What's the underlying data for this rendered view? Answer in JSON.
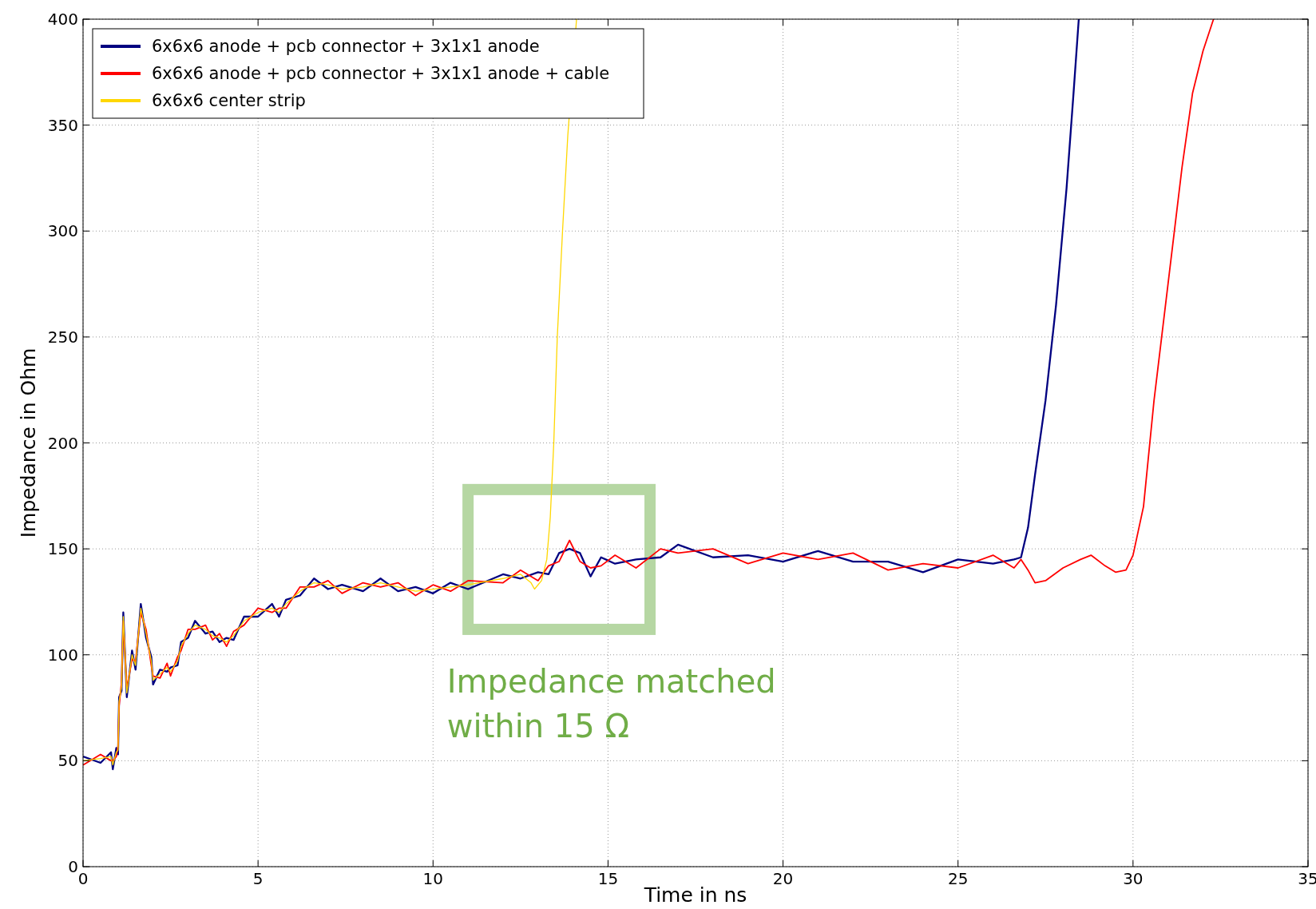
{
  "chart_data": {
    "type": "line",
    "xlabel": "Time in ns",
    "ylabel": "Impedance in Ohm",
    "xlim": [
      0,
      35
    ],
    "ylim": [
      0,
      400
    ],
    "xticks": [
      0,
      5,
      10,
      15,
      20,
      25,
      30,
      35
    ],
    "yticks": [
      0,
      50,
      100,
      150,
      200,
      250,
      300,
      350,
      400
    ],
    "grid": true,
    "legend": "top left",
    "line_style": "solid",
    "marker": "none",
    "annotations": [
      "Impedance matched within 15 Ω"
    ],
    "series": [
      {
        "name": "6x6x6 anode + pcb connector + 3x1x1 anode",
        "color": "#000080",
        "x": [
          0,
          0.5,
          0.8,
          0.85,
          0.95,
          1.0,
          1.03,
          1.1,
          1.15,
          1.25,
          1.4,
          1.5,
          1.65,
          1.8,
          1.95,
          2.0,
          2.2,
          2.4,
          2.5,
          2.7,
          2.8,
          3.0,
          3.2,
          3.5,
          3.7,
          3.9,
          4.1,
          4.3,
          4.6,
          5.0,
          5.4,
          5.6,
          5.8,
          6.2,
          6.6,
          7.0,
          7.4,
          8.0,
          8.5,
          9.0,
          9.5,
          10.0,
          10.5,
          11.0,
          12.0,
          12.5,
          13.0,
          13.3,
          13.6,
          13.9,
          14.2,
          14.5,
          14.8,
          15.2,
          15.8,
          16.5,
          17,
          18,
          19,
          20,
          21,
          22,
          23,
          24,
          25,
          26,
          26.6,
          26.8,
          27,
          27.2,
          27.5,
          27.8,
          28.1,
          28.3,
          28.45
        ],
        "values": [
          52,
          49,
          54,
          46,
          56,
          53,
          80,
          83,
          120,
          80,
          102,
          93,
          124,
          108,
          99,
          86,
          93,
          92,
          94,
          95,
          106,
          108,
          116,
          110,
          111,
          106,
          108,
          107,
          118,
          118,
          124,
          118,
          126,
          128,
          136,
          131,
          133,
          130,
          136,
          130,
          132,
          129,
          134,
          131,
          138,
          136,
          139,
          138,
          148,
          150,
          148,
          137,
          146,
          143,
          145,
          146,
          152,
          146,
          147,
          144,
          149,
          144,
          144,
          139,
          145,
          143,
          145,
          146,
          160,
          185,
          220,
          265,
          320,
          365,
          400
        ]
      },
      {
        "name": "6x6x6 anode + pcb connector + 3x1x1 anode + cable",
        "color": "#ff0000",
        "x": [
          0,
          0.5,
          0.8,
          0.85,
          0.95,
          1.0,
          1.03,
          1.1,
          1.15,
          1.25,
          1.4,
          1.5,
          1.65,
          1.8,
          1.95,
          2.0,
          2.2,
          2.4,
          2.5,
          2.7,
          2.8,
          3.0,
          3.2,
          3.5,
          3.7,
          3.9,
          4.1,
          4.3,
          4.6,
          5.0,
          5.4,
          5.6,
          5.8,
          6.2,
          6.6,
          7.0,
          7.4,
          8.0,
          8.5,
          9.0,
          9.5,
          10.0,
          10.5,
          11.0,
          12.0,
          12.5,
          13.0,
          13.3,
          13.6,
          13.9,
          14.2,
          14.5,
          14.8,
          15.2,
          15.8,
          16.5,
          17,
          18,
          19,
          20,
          21,
          22,
          23,
          24,
          25,
          26,
          26.6,
          26.8,
          27,
          27.2,
          27.5,
          28,
          28.5,
          28.8,
          29.2,
          29.5,
          29.8,
          30.0,
          30.3,
          30.6,
          31.0,
          31.4,
          31.7,
          32.0,
          32.3
        ],
        "values": [
          48,
          53,
          50,
          50,
          52,
          57,
          76,
          87,
          116,
          84,
          98,
          97,
          120,
          112,
          95,
          90,
          89,
          96,
          90,
          99,
          102,
          112,
          112,
          114,
          107,
          110,
          104,
          111,
          114,
          122,
          120,
          122,
          122,
          132,
          132,
          135,
          129,
          134,
          132,
          134,
          128,
          133,
          130,
          135,
          134,
          140,
          135,
          142,
          144,
          154,
          144,
          141,
          142,
          147,
          141,
          150,
          148,
          150,
          143,
          148,
          145,
          148,
          140,
          143,
          141,
          147,
          141,
          145,
          140,
          134,
          135,
          141,
          145,
          147,
          142,
          139,
          140,
          147,
          170,
          220,
          275,
          330,
          365,
          385,
          400
        ]
      },
      {
        "name": "6x6x6 center strip",
        "color": "#ffd700",
        "x": [
          0,
          0.5,
          0.8,
          0.85,
          0.95,
          1.0,
          1.03,
          1.1,
          1.15,
          1.25,
          1.4,
          1.5,
          1.65,
          1.8,
          1.95,
          2.0,
          2.2,
          2.4,
          2.5,
          2.7,
          2.8,
          3.0,
          3.2,
          3.5,
          3.7,
          3.9,
          4.1,
          4.3,
          4.6,
          5.0,
          5.4,
          5.6,
          5.8,
          6.2,
          6.6,
          7.0,
          7.4,
          8.0,
          8.5,
          9.0,
          9.5,
          10.0,
          10.5,
          11.0,
          12.0,
          12.5,
          12.8,
          12.9,
          13.1,
          13.25,
          13.35,
          13.45,
          13.55,
          13.7,
          13.85,
          14.1
        ],
        "values": [
          50,
          51,
          52,
          48,
          54,
          55,
          78,
          85,
          118,
          82,
          100,
          95,
          122,
          110,
          97,
          88,
          91,
          94,
          92,
          97,
          104,
          110,
          114,
          112,
          109,
          108,
          106,
          109,
          116,
          120,
          122,
          120,
          124,
          130,
          134,
          133,
          131,
          132,
          134,
          132,
          130,
          131,
          132,
          133,
          136,
          138,
          134,
          131,
          135,
          145,
          165,
          200,
          250,
          300,
          345,
          400
        ]
      }
    ]
  }
}
